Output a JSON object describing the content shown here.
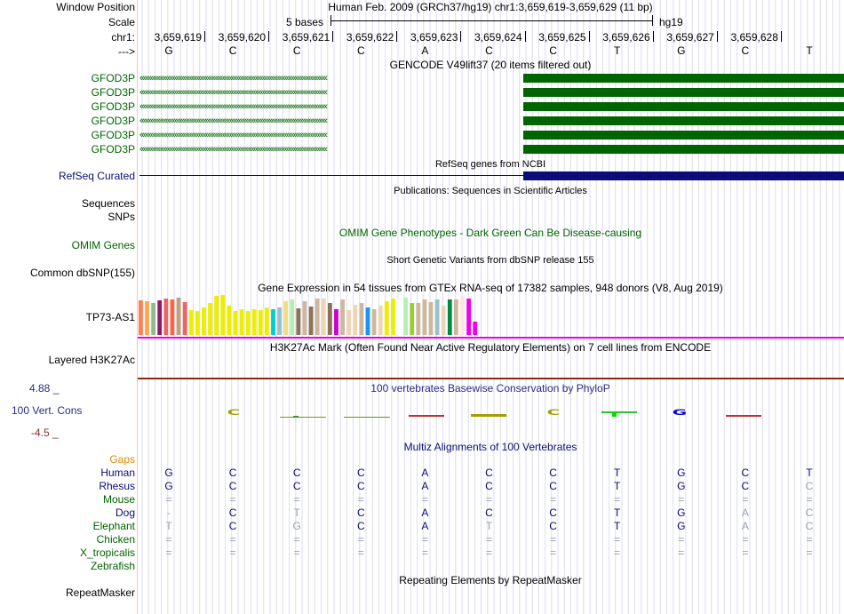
{
  "labels": {
    "window_position": "Window Position",
    "scale": "Scale",
    "chrom": "chr1:",
    "strand": "--->"
  },
  "header": {
    "position_title": "Human Feb. 2009 (GRCh37/hg19)   chr1:3,659,619-3,659,629 (11 bp)",
    "scale_text": "5 bases",
    "assembly": "hg19"
  },
  "coordinates": [
    "3,659,619",
    "3,659,620",
    "3,659,621",
    "3,659,622",
    "3,659,623",
    "3,659,624",
    "3,659,625",
    "3,659,626",
    "3,659,627",
    "3,659,628"
  ],
  "bases": [
    "G",
    "C",
    "C",
    "C",
    "A",
    "C",
    "C",
    "T",
    "G",
    "C",
    "T"
  ],
  "gencode": {
    "title": "GENCODE V49lift37 (20 items filtered out)",
    "rows": [
      "GFOD3P",
      "GFOD3P",
      "GFOD3P",
      "GFOD3P",
      "GFOD3P",
      "GFOD3P"
    ],
    "strand_glyphs": "‹‹‹‹‹‹‹‹‹‹‹‹‹‹‹‹‹‹‹‹‹‹‹‹‹‹‹‹‹‹‹‹‹‹‹‹‹‹‹‹‹‹‹‹‹‹‹‹‹‹‹‹‹‹‹‹‹‹‹‹‹‹‹‹‹‹‹‹‹‹‹‹‹‹‹‹‹‹‹‹‹‹‹‹‹‹‹‹‹‹‹‹‹‹‹‹‹‹‹‹‹‹",
    "color": "#006400"
  },
  "refseq": {
    "title": "RefSeq genes from NCBI",
    "label": "RefSeq Curated",
    "color": "#0c0c78"
  },
  "publications": {
    "title": "Publications: Sequences in Scientific Articles"
  },
  "sequences_label": "Sequences",
  "snps_label": "SNPs",
  "omim": {
    "label": "OMIM Genes",
    "title": "OMIM Gene Phenotypes - Dark Green Can Be Disease-causing",
    "color": "#006400"
  },
  "dbsnp": {
    "label": "Common dbSNP(155)",
    "title": "Short Genetic Variants from dbSNP release 155"
  },
  "gtex": {
    "title": "Gene Expression in 54 tissues from GTEx RNA-seq of 17382 samples, 948 donors (V8, Aug 2019)",
    "label": "TP73-AS1",
    "bar_levels": [
      0.85,
      0.82,
      0.78,
      0.85,
      0.9,
      0.88,
      0.92,
      0.8,
      0.6,
      0.58,
      0.68,
      0.78,
      0.95,
      0.98,
      0.72,
      0.58,
      0.62,
      0.58,
      0.62,
      0.6,
      0.68,
      0.64,
      0.68,
      0.82,
      0.88,
      0.66,
      0.82,
      0.7,
      0.9,
      0.9,
      0.78,
      0.64,
      0.86,
      0.6,
      0.74,
      0.78,
      0.68,
      0.64,
      0.72,
      0.82,
      0.9,
      0.88,
      0.92,
      0.78,
      0.78,
      0.86,
      0.8,
      0.86,
      0.72,
      0.86,
      0.88,
      0.96,
      0.9,
      0.32
    ],
    "bar_colors": [
      "#ff7f50",
      "#ffa54f",
      "#8fbc8f",
      "#8b1c62",
      "#ee6363",
      "#ff6347",
      "#c0a080",
      "#ee6363",
      "#eeee00",
      "#eeee00",
      "#eeee00",
      "#eeee00",
      "#eeee00",
      "#eeee00",
      "#eeee00",
      "#eeee00",
      "#eeee00",
      "#eeee00",
      "#eeee00",
      "#eeee00",
      "#eeee00",
      "#00cdcd",
      "#9ac0cd",
      "#eedd82",
      "#b4eeb4",
      "#8b7355",
      "#cdb79e",
      "#8b7355",
      "#cdb79e",
      "#eed5b7",
      "#8b7355",
      "#cd00cd",
      "#cdb79e",
      "#eed5b7",
      "#eed5b7",
      "#cdb79e",
      "#1e90ff",
      "#cdb79e",
      "#eed5b7",
      "#eeee00",
      "#eeee00",
      "#ffffff",
      "#b4eeb4",
      "#9acd32",
      "#cdb79e",
      "#cdb79e",
      "#cdb79e",
      "#9ac0cd",
      "#eed5b7",
      "#008b45",
      "#cdb79e",
      "#ffe4e1",
      "#ee00ee",
      "#ee00ee"
    ],
    "baseline_color": "#ee00ee"
  },
  "h3k27ac": {
    "title": "H3K27Ac Mark (Often Found Near Active Regulatory Elements) on 7 cell lines from ENCODE",
    "label": "Layered H3K27Ac"
  },
  "phylop": {
    "title": "100 vertebrates Basewise Conservation by PhyloP",
    "label": "100 Vert. Cons",
    "max": "4.88 _",
    "min": "-4.5 _",
    "color": "#2a2a8a"
  },
  "multiz": {
    "title": "Multiz Alignments of 100 Vertebrates",
    "gaps_label": "Gaps",
    "species": [
      {
        "name": "Human",
        "color": "#0c0c78",
        "cells": [
          "G",
          "C",
          "C",
          "C",
          "A",
          "C",
          "C",
          "T",
          "G",
          "C",
          "T"
        ]
      },
      {
        "name": "Rhesus",
        "color": "#0c0c78",
        "cells": [
          "G",
          "C",
          "C",
          "C",
          "A",
          "C",
          "C",
          "T",
          "G",
          "C",
          "C"
        ]
      },
      {
        "name": "Mouse",
        "color": "#006400",
        "cells": [
          "=",
          "=",
          "=",
          "=",
          "=",
          "=",
          "=",
          "=",
          "=",
          "=",
          "="
        ]
      },
      {
        "name": "Dog",
        "color": "#0c0c78",
        "cells": [
          "-",
          "C",
          "T",
          "C",
          "A",
          "C",
          "C",
          "T",
          "G",
          "A",
          "C"
        ]
      },
      {
        "name": "Elephant",
        "color": "#006400",
        "cells": [
          "T",
          "C",
          "G",
          "C",
          "A",
          "T",
          "C",
          "T",
          "G",
          "A",
          "C"
        ]
      },
      {
        "name": "Chicken",
        "color": "#006400",
        "cells": [
          "=",
          "=",
          "=",
          "=",
          "=",
          "=",
          "=",
          "=",
          "=",
          "=",
          "="
        ]
      },
      {
        "name": "X_tropicalis",
        "color": "#006400",
        "cells": [
          "=",
          "=",
          "=",
          "=",
          "=",
          "=",
          "=",
          "=",
          "=",
          "=",
          "="
        ]
      },
      {
        "name": "Zebrafish",
        "color": "#006400",
        "cells": [
          "",
          "",
          "",
          "",
          "",
          "",
          "",
          "",
          "",
          "",
          ""
        ]
      }
    ]
  },
  "repeatmasker": {
    "title": "Repeating Elements by RepeatMasker",
    "label": "RepeatMasker"
  }
}
